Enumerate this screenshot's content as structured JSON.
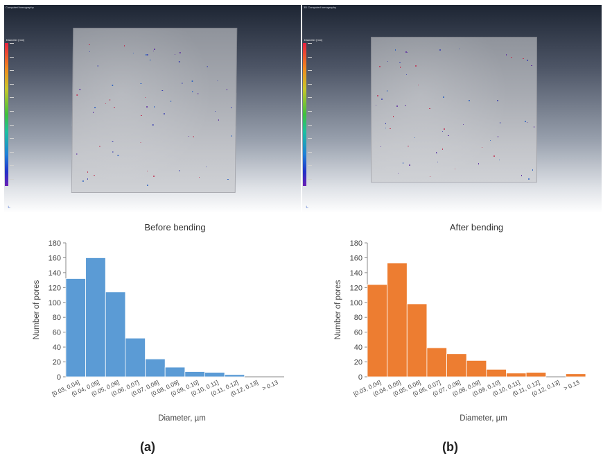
{
  "panels": {
    "a": {
      "window_title": "Computed tomography",
      "scale_title": "Diameter [mm]",
      "caption": "(a)"
    },
    "b": {
      "window_title": "3D Computed tomography",
      "scale_title": "Diameter [mm]",
      "caption": "(b)"
    }
  },
  "colors": {
    "before": "#5b9bd5",
    "after": "#ed7d31"
  },
  "chart_data": [
    {
      "type": "bar",
      "title": "Before bending",
      "xlabel": "Diameter, µm",
      "ylabel": "Number of pores",
      "ylim": [
        0,
        180
      ],
      "yticks": [
        0,
        20,
        40,
        60,
        80,
        100,
        120,
        140,
        160,
        180
      ],
      "categories": [
        "[0.03, 0.04]",
        "(0.04, 0.05]",
        "(0.05, 0.06]",
        "(0.06, 0.07]",
        "(0.07, 0.08]",
        "(0.08, 0.09]",
        "(0.09, 0.10]",
        "(0.10, 0.11]",
        "(0.11, 0.12]",
        "(0.12, 0.13]",
        "> 0.13"
      ],
      "values": [
        132,
        160,
        114,
        52,
        24,
        13,
        7,
        6,
        3,
        0,
        0
      ],
      "color": "#5b9bd5",
      "grid": false
    },
    {
      "type": "bar",
      "title": "After bending",
      "xlabel": "Diameter, µm",
      "ylabel": "Number of pores",
      "ylim": [
        0,
        180
      ],
      "yticks": [
        0,
        20,
        40,
        60,
        80,
        100,
        120,
        140,
        160,
        180
      ],
      "categories": [
        "[0.03, 0.04]",
        "(0.04, 0.05]",
        "(0.05, 0.06]",
        "(0.06, 0.07]",
        "(0.07, 0.08]",
        "(0.08, 0.09]",
        "(0.09, 0.10]",
        "(0.10, 0.11]",
        "(0.11, 0.12]",
        "(0.12, 0.13]",
        "> 0.13"
      ],
      "values": [
        124,
        153,
        98,
        39,
        31,
        22,
        10,
        5,
        6,
        0,
        4
      ],
      "color": "#ed7d31",
      "grid": false
    }
  ]
}
